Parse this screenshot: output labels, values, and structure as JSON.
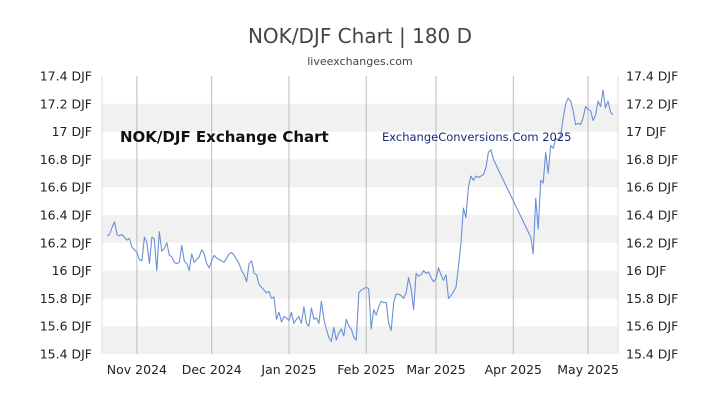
{
  "chart_data": {
    "type": "line",
    "title": "NOK/DJF Chart | 180 D",
    "subtitle": "liveexchanges.com",
    "annotations": [
      "NOK/DJF Exchange Chart",
      "ExchangeConversions.Com 2025"
    ],
    "y_tick_labels": [
      "17.4 DJF",
      "17.2 DJF",
      "17 DJF",
      "16.8 DJF",
      "16.6 DJF",
      "16.4 DJF",
      "16.2 DJF",
      "16 DJF",
      "15.8 DJF",
      "15.6 DJF",
      "15.4 DJF"
    ],
    "y_ticks": [
      17.4,
      17.2,
      17.0,
      16.8,
      16.6,
      16.4,
      16.2,
      16.0,
      15.8,
      15.6,
      15.4
    ],
    "x_tick_labels": [
      "Nov 2024",
      "Dec 2024",
      "Jan 2025",
      "Feb 2025",
      "Mar 2025",
      "Apr 2025",
      "May 2025"
    ],
    "x_tick_dates": [
      "2024-11-01",
      "2024-12-01",
      "2025-01-01",
      "2025-02-01",
      "2025-03-01",
      "2025-04-01",
      "2025-05-01"
    ],
    "xlim": [
      "2024-10-18",
      "2025-05-13"
    ],
    "ylim": [
      15.4,
      17.4
    ],
    "grid": true,
    "line_color": "#6b8fd6",
    "points": [
      [
        "2024-10-20",
        16.25
      ],
      [
        "2024-10-21",
        16.26
      ],
      [
        "2024-10-22",
        16.31
      ],
      [
        "2024-10-23",
        16.35
      ],
      [
        "2024-10-24",
        16.26
      ],
      [
        "2024-10-25",
        16.25
      ],
      [
        "2024-10-26",
        16.26
      ],
      [
        "2024-10-27",
        16.24
      ],
      [
        "2024-10-28",
        16.22
      ],
      [
        "2024-10-29",
        16.23
      ],
      [
        "2024-10-30",
        16.17
      ],
      [
        "2024-10-31",
        16.15
      ],
      [
        "2024-11-01",
        16.13
      ],
      [
        "2024-11-02",
        16.08
      ],
      [
        "2024-11-03",
        16.07
      ],
      [
        "2024-11-04",
        16.24
      ],
      [
        "2024-11-05",
        16.2
      ],
      [
        "2024-11-06",
        16.05
      ],
      [
        "2024-11-07",
        16.24
      ],
      [
        "2024-11-08",
        16.23
      ],
      [
        "2024-11-09",
        16.0
      ],
      [
        "2024-11-10",
        16.28
      ],
      [
        "2024-11-11",
        16.14
      ],
      [
        "2024-11-12",
        16.16
      ],
      [
        "2024-11-13",
        16.2
      ],
      [
        "2024-11-14",
        16.11
      ],
      [
        "2024-11-15",
        16.1
      ],
      [
        "2024-11-16",
        16.06
      ],
      [
        "2024-11-17",
        16.05
      ],
      [
        "2024-11-18",
        16.06
      ],
      [
        "2024-11-19",
        16.18
      ],
      [
        "2024-11-20",
        16.07
      ],
      [
        "2024-11-21",
        16.05
      ],
      [
        "2024-11-22",
        16.0
      ],
      [
        "2024-11-23",
        16.12
      ],
      [
        "2024-11-24",
        16.06
      ],
      [
        "2024-11-25",
        16.08
      ],
      [
        "2024-11-26",
        16.1
      ],
      [
        "2024-11-27",
        16.15
      ],
      [
        "2024-11-28",
        16.12
      ],
      [
        "2024-11-29",
        16.05
      ],
      [
        "2024-11-30",
        16.02
      ],
      [
        "2024-12-01",
        16.07
      ],
      [
        "2024-12-02",
        16.11
      ],
      [
        "2024-12-03",
        16.09
      ],
      [
        "2024-12-04",
        16.08
      ],
      [
        "2024-12-05",
        16.07
      ],
      [
        "2024-12-06",
        16.06
      ],
      [
        "2024-12-07",
        16.09
      ],
      [
        "2024-12-08",
        16.12
      ],
      [
        "2024-12-09",
        16.13
      ],
      [
        "2024-12-10",
        16.11
      ],
      [
        "2024-12-11",
        16.08
      ],
      [
        "2024-12-12",
        16.05
      ],
      [
        "2024-12-13",
        16.0
      ],
      [
        "2024-12-14",
        15.97
      ],
      [
        "2024-12-15",
        15.92
      ],
      [
        "2024-12-16",
        16.05
      ],
      [
        "2024-12-17",
        16.07
      ],
      [
        "2024-12-18",
        15.98
      ],
      [
        "2024-12-19",
        15.97
      ],
      [
        "2024-12-20",
        15.9
      ],
      [
        "2024-12-21",
        15.88
      ],
      [
        "2024-12-22",
        15.86
      ],
      [
        "2024-12-23",
        15.84
      ],
      [
        "2024-12-24",
        15.85
      ],
      [
        "2024-12-25",
        15.8
      ],
      [
        "2024-12-26",
        15.81
      ],
      [
        "2024-12-27",
        15.65
      ],
      [
        "2024-12-28",
        15.7
      ],
      [
        "2024-12-29",
        15.63
      ],
      [
        "2024-12-30",
        15.67
      ],
      [
        "2024-12-31",
        15.66
      ],
      [
        "2025-01-01",
        15.64
      ],
      [
        "2025-01-02",
        15.7
      ],
      [
        "2025-01-03",
        15.62
      ],
      [
        "2025-01-04",
        15.65
      ],
      [
        "2025-01-05",
        15.67
      ],
      [
        "2025-01-06",
        15.62
      ],
      [
        "2025-01-07",
        15.74
      ],
      [
        "2025-01-08",
        15.62
      ],
      [
        "2025-01-09",
        15.6
      ],
      [
        "2025-01-10",
        15.73
      ],
      [
        "2025-01-11",
        15.65
      ],
      [
        "2025-01-12",
        15.66
      ],
      [
        "2025-01-13",
        15.62
      ],
      [
        "2025-01-14",
        15.78
      ],
      [
        "2025-01-15",
        15.65
      ],
      [
        "2025-01-16",
        15.58
      ],
      [
        "2025-01-17",
        15.52
      ],
      [
        "2025-01-18",
        15.49
      ],
      [
        "2025-01-19",
        15.59
      ],
      [
        "2025-01-20",
        15.5
      ],
      [
        "2025-01-21",
        15.55
      ],
      [
        "2025-01-22",
        15.58
      ],
      [
        "2025-01-23",
        15.53
      ],
      [
        "2025-01-24",
        15.65
      ],
      [
        "2025-01-25",
        15.6
      ],
      [
        "2025-01-26",
        15.58
      ],
      [
        "2025-01-27",
        15.52
      ],
      [
        "2025-01-28",
        15.5
      ],
      [
        "2025-01-29",
        15.84
      ],
      [
        "2025-01-30",
        15.86
      ],
      [
        "2025-01-31",
        15.87
      ],
      [
        "2025-02-01",
        15.88
      ],
      [
        "2025-02-02",
        15.87
      ],
      [
        "2025-02-03",
        15.58
      ],
      [
        "2025-02-04",
        15.72
      ],
      [
        "2025-02-05",
        15.68
      ],
      [
        "2025-02-06",
        15.74
      ],
      [
        "2025-02-07",
        15.78
      ],
      [
        "2025-02-08",
        15.77
      ],
      [
        "2025-02-09",
        15.77
      ],
      [
        "2025-02-10",
        15.62
      ],
      [
        "2025-02-11",
        15.57
      ],
      [
        "2025-02-12",
        15.77
      ],
      [
        "2025-02-13",
        15.83
      ],
      [
        "2025-02-14",
        15.83
      ],
      [
        "2025-02-15",
        15.82
      ],
      [
        "2025-02-16",
        15.8
      ],
      [
        "2025-02-17",
        15.84
      ],
      [
        "2025-02-18",
        15.95
      ],
      [
        "2025-02-19",
        15.87
      ],
      [
        "2025-02-20",
        15.72
      ],
      [
        "2025-02-21",
        15.98
      ],
      [
        "2025-02-22",
        15.96
      ],
      [
        "2025-02-23",
        15.97
      ],
      [
        "2025-02-24",
        16.0
      ],
      [
        "2025-02-25",
        15.98
      ],
      [
        "2025-02-26",
        15.99
      ],
      [
        "2025-02-27",
        15.95
      ],
      [
        "2025-02-28",
        15.92
      ],
      [
        "2025-03-01",
        15.94
      ],
      [
        "2025-03-02",
        16.02
      ],
      [
        "2025-03-03",
        15.97
      ],
      [
        "2025-03-04",
        15.93
      ],
      [
        "2025-03-05",
        15.97
      ],
      [
        "2025-03-06",
        15.8
      ],
      [
        "2025-03-07",
        15.82
      ],
      [
        "2025-03-08",
        15.85
      ],
      [
        "2025-03-09",
        15.88
      ],
      [
        "2025-03-10",
        16.03
      ],
      [
        "2025-03-11",
        16.2
      ],
      [
        "2025-03-12",
        16.45
      ],
      [
        "2025-03-13",
        16.38
      ],
      [
        "2025-03-14",
        16.6
      ],
      [
        "2025-03-15",
        16.68
      ],
      [
        "2025-03-16",
        16.65
      ],
      [
        "2025-03-17",
        16.68
      ],
      [
        "2025-03-18",
        16.67
      ],
      [
        "2025-03-19",
        16.68
      ],
      [
        "2025-03-20",
        16.69
      ],
      [
        "2025-03-21",
        16.74
      ],
      [
        "2025-03-22",
        16.85
      ],
      [
        "2025-03-23",
        16.87
      ],
      [
        "2025-03-24",
        16.8
      ],
      [
        "2025-04-08",
        16.24
      ],
      [
        "2025-04-09",
        16.12
      ],
      [
        "2025-04-10",
        16.52
      ],
      [
        "2025-04-11",
        16.3
      ],
      [
        "2025-04-12",
        16.65
      ],
      [
        "2025-04-13",
        16.63
      ],
      [
        "2025-04-14",
        16.85
      ],
      [
        "2025-04-15",
        16.7
      ],
      [
        "2025-04-16",
        16.9
      ],
      [
        "2025-04-17",
        16.88
      ],
      [
        "2025-04-18",
        16.95
      ],
      [
        "2025-04-19",
        16.94
      ],
      [
        "2025-04-20",
        16.97
      ],
      [
        "2025-04-21",
        17.1
      ],
      [
        "2025-04-22",
        17.2
      ],
      [
        "2025-04-23",
        17.24
      ],
      [
        "2025-04-24",
        17.22
      ],
      [
        "2025-04-25",
        17.15
      ],
      [
        "2025-04-26",
        17.05
      ],
      [
        "2025-04-27",
        17.06
      ],
      [
        "2025-04-28",
        17.05
      ],
      [
        "2025-04-29",
        17.1
      ],
      [
        "2025-04-30",
        17.18
      ],
      [
        "2025-05-01",
        17.16
      ],
      [
        "2025-05-02",
        17.15
      ],
      [
        "2025-05-03",
        17.08
      ],
      [
        "2025-05-04",
        17.12
      ],
      [
        "2025-05-05",
        17.22
      ],
      [
        "2025-05-06",
        17.18
      ],
      [
        "2025-05-07",
        17.3
      ],
      [
        "2025-05-08",
        17.17
      ],
      [
        "2025-05-09",
        17.22
      ],
      [
        "2025-05-10",
        17.14
      ],
      [
        "2025-05-11",
        17.12
      ]
    ]
  }
}
